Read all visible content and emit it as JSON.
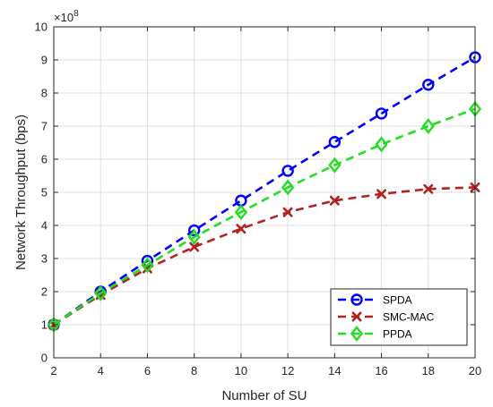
{
  "chart_data": {
    "type": "line",
    "title": "",
    "xlabel": "Number of SU",
    "ylabel": "Network Throughput (bps)",
    "y_exponent_label": "×10",
    "y_exponent_power": "8",
    "x": [
      2,
      4,
      6,
      8,
      10,
      12,
      14,
      16,
      18,
      20
    ],
    "xlim": [
      2,
      20
    ],
    "ylim": [
      0,
      10
    ],
    "y_scale_factor": 100000000,
    "x_ticks": [
      "2",
      "4",
      "6",
      "8",
      "10",
      "12",
      "14",
      "16",
      "18",
      "20"
    ],
    "y_ticks": [
      "0",
      "1",
      "2",
      "3",
      "4",
      "5",
      "6",
      "7",
      "8",
      "9",
      "10"
    ],
    "grid": true,
    "legend_position": "bottom-right",
    "series": [
      {
        "name": "SPDA",
        "color": "#0000ff",
        "marker": "circle",
        "line": "dashed",
        "values": [
          1.0,
          2.0,
          2.93,
          3.85,
          4.75,
          5.65,
          6.52,
          7.38,
          8.25,
          9.08
        ]
      },
      {
        "name": "SMC-MAC",
        "color": "#b22222",
        "marker": "x",
        "line": "dashed",
        "values": [
          1.0,
          1.9,
          2.7,
          3.35,
          3.9,
          4.4,
          4.75,
          4.95,
          5.1,
          5.15
        ]
      },
      {
        "name": "PPDA",
        "color": "#22dd22",
        "marker": "diamond",
        "line": "dashed",
        "values": [
          1.0,
          1.95,
          2.8,
          3.65,
          4.4,
          5.15,
          5.82,
          6.45,
          7.0,
          7.52
        ]
      }
    ]
  }
}
